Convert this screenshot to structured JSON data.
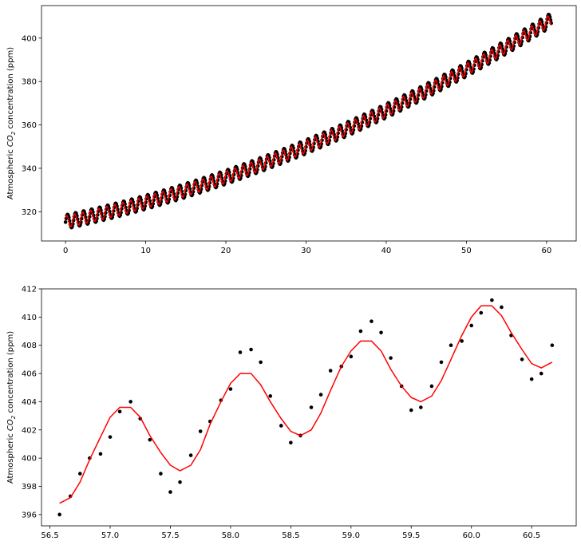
{
  "chart_data": [
    {
      "type": "scatter",
      "ylabel_prefix": "Atmospheric ",
      "ylabel_chem": "CO",
      "ylabel_sub": "2",
      "ylabel_suffix": " concentration (ppm)",
      "xlim": [
        -3.0,
        63.7
      ],
      "ylim": [
        306.5,
        415.0
      ],
      "xticks": [
        0,
        10,
        20,
        30,
        40,
        50,
        60
      ],
      "yticks": [
        320,
        340,
        360,
        380,
        400
      ],
      "grid": false,
      "legend": "none",
      "trend": {
        "x_range": [
          0,
          60.6
        ],
        "a": 315.3,
        "b": 0.78,
        "c": 0.0125
      },
      "series": [
        {
          "style": "points",
          "color": "#000000",
          "seasonal_amplitude": 3.2,
          "phase": 0.1
        },
        {
          "style": "line",
          "color": "#ff0000",
          "seasonal_amplitude": 2.8,
          "phase": 0.0
        }
      ]
    },
    {
      "type": "scatter",
      "ylabel_prefix": "Atmospheric ",
      "ylabel_chem": "CO",
      "ylabel_sub": "2",
      "ylabel_suffix": " concentration (ppm)",
      "xlim": [
        56.43,
        60.87
      ],
      "ylim": [
        395.2,
        412.0
      ],
      "xticks": [
        56.5,
        57.0,
        57.5,
        58.0,
        58.5,
        59.0,
        59.5,
        60.0,
        60.5
      ],
      "xtick_labels": [
        "56.5",
        "57.0",
        "57.5",
        "58.0",
        "58.5",
        "59.0",
        "59.5",
        "60.0",
        "60.5"
      ],
      "yticks": [
        396,
        398,
        400,
        402,
        404,
        406,
        408,
        410,
        412
      ],
      "grid": false,
      "legend": "none",
      "series": [
        {
          "style": "points",
          "color": "#000000",
          "x": [
            56.58,
            56.67,
            56.75,
            56.83,
            56.92,
            57.0,
            57.08,
            57.17,
            57.25,
            57.33,
            57.42,
            57.5,
            57.58,
            57.67,
            57.75,
            57.83,
            57.92,
            58.0,
            58.08,
            58.17,
            58.25,
            58.33,
            58.42,
            58.5,
            58.58,
            58.67,
            58.75,
            58.83,
            58.92,
            59.0,
            59.08,
            59.17,
            59.25,
            59.33,
            59.42,
            59.5,
            59.58,
            59.67,
            59.75,
            59.83,
            59.92,
            60.0,
            60.08,
            60.17,
            60.25,
            60.33,
            60.42,
            60.5,
            60.58,
            60.67
          ],
          "y": [
            396.0,
            397.3,
            398.9,
            400.0,
            400.3,
            401.5,
            403.3,
            404.0,
            402.8,
            401.3,
            398.9,
            397.6,
            398.3,
            400.2,
            401.9,
            402.6,
            404.1,
            404.9,
            407.5,
            407.7,
            406.8,
            404.4,
            402.3,
            401.1,
            401.6,
            403.6,
            404.5,
            406.2,
            406.5,
            407.2,
            409.0,
            409.7,
            408.9,
            407.1,
            405.1,
            403.4,
            403.6,
            405.1,
            406.8,
            408.0,
            408.3,
            409.4,
            410.3,
            411.2,
            410.7,
            408.7,
            407.0,
            405.6,
            406.0,
            408.0
          ]
        },
        {
          "style": "line",
          "color": "#ff0000",
          "x": [
            56.58,
            56.67,
            56.75,
            56.83,
            56.92,
            57.0,
            57.08,
            57.17,
            57.25,
            57.33,
            57.42,
            57.5,
            57.58,
            57.67,
            57.75,
            57.83,
            57.92,
            58.0,
            58.08,
            58.17,
            58.25,
            58.33,
            58.42,
            58.5,
            58.58,
            58.67,
            58.75,
            58.83,
            58.92,
            59.0,
            59.08,
            59.17,
            59.25,
            59.33,
            59.42,
            59.5,
            59.58,
            59.67,
            59.75,
            59.83,
            59.92,
            60.0,
            60.08,
            60.17,
            60.25,
            60.33,
            60.42,
            60.5,
            60.58,
            60.67
          ],
          "y": [
            396.8,
            397.2,
            398.3,
            399.9,
            401.5,
            402.9,
            403.6,
            403.6,
            402.9,
            401.6,
            400.4,
            399.5,
            399.1,
            399.5,
            400.6,
            402.4,
            404.0,
            405.3,
            406.0,
            406.0,
            405.2,
            404.0,
            402.8,
            401.9,
            401.6,
            402.0,
            403.2,
            404.8,
            406.5,
            407.6,
            408.3,
            408.3,
            407.6,
            406.3,
            405.1,
            404.3,
            404.0,
            404.4,
            405.5,
            407.0,
            408.7,
            410.0,
            410.8,
            410.8,
            410.1,
            408.9,
            407.7,
            406.7,
            406.4,
            406.8
          ]
        }
      ]
    }
  ]
}
